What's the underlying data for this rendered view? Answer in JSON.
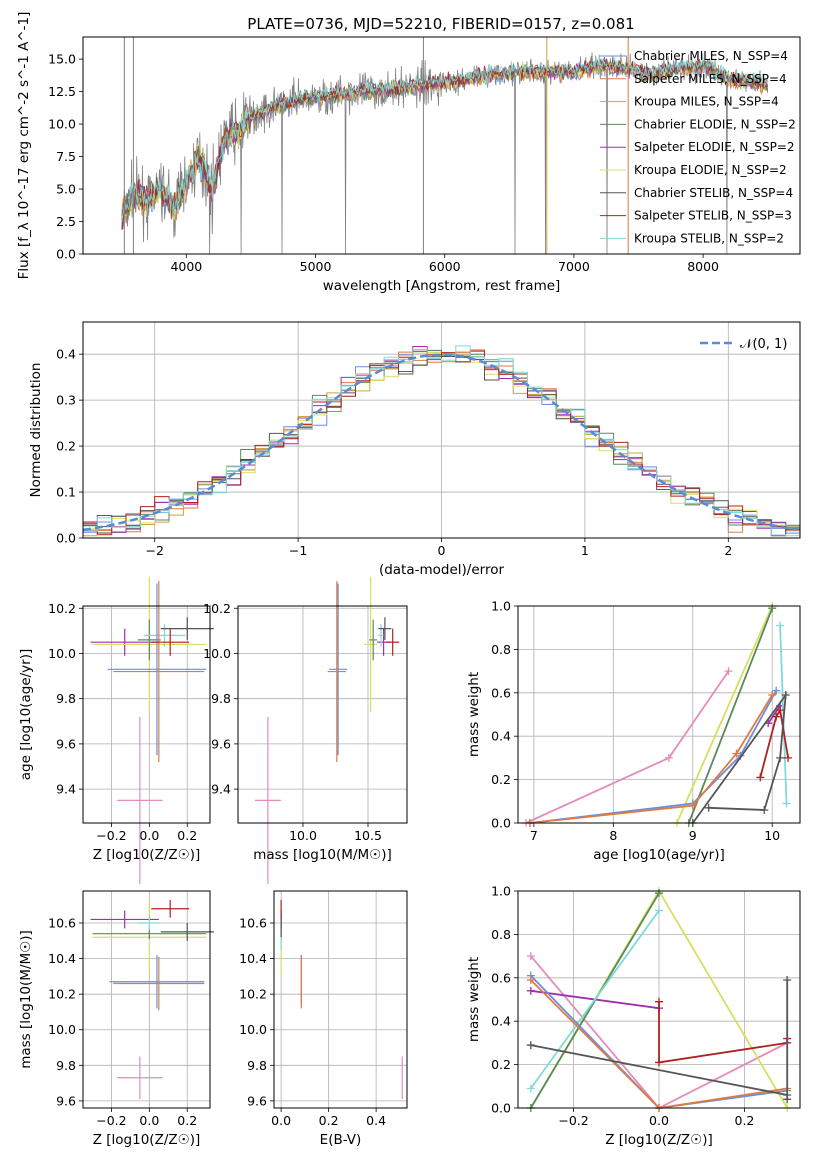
{
  "figure": {
    "title": "PLATE=0736, MJD=52210, FIBERID=0157, z=0.081"
  },
  "chart_data": [
    {
      "id": "spectrum",
      "type": "line",
      "title": "PLATE=0736, MJD=52210, FIBERID=0157, z=0.081",
      "xlabel": "wavelength [Angstrom, rest frame]",
      "ylabel": "Flux [f_λ 10^-17 erg cm^-2 s^-1 A^-1]",
      "xlim": [
        3200,
        8750
      ],
      "ylim": [
        0,
        16.7
      ],
      "xticks": [
        4000,
        5000,
        6000,
        7000,
        8000
      ],
      "yticks": [
        0.0,
        2.5,
        5.0,
        7.5,
        10.0,
        12.5,
        15.0
      ],
      "grid": false,
      "legend_position": "right",
      "data_envelope": {
        "x": [
          3500,
          3600,
          3700,
          3800,
          3900,
          4000,
          4100,
          4200,
          4300,
          4400,
          4500,
          4600,
          4700,
          4800,
          4900,
          5000,
          5200,
          5400,
          5600,
          5800,
          6000,
          6200,
          6400,
          6600,
          6800,
          7000,
          7200,
          7400,
          7600,
          7800,
          8000,
          8200,
          8400,
          8500
        ],
        "y": [
          3.0,
          4.5,
          4.0,
          5.0,
          3.5,
          5.5,
          7.5,
          5.0,
          9.0,
          9.5,
          10.5,
          11.0,
          11.5,
          11.5,
          12.0,
          12.0,
          12.3,
          12.5,
          12.7,
          13.0,
          13.2,
          13.5,
          13.8,
          14.0,
          14.0,
          14.0,
          14.5,
          14.3,
          13.8,
          14.3,
          14.5,
          13.5,
          13.2,
          13.0
        ]
      },
      "series": [
        {
          "name": "Chabrier MILES, N_SSP=4",
          "color": "#6a8fd8"
        },
        {
          "name": "Salpeter MILES, N_SSP=4",
          "color": "#e07a43"
        },
        {
          "name": "Kroupa MILES, N_SSP=4",
          "color": "#c8a840"
        },
        {
          "name": "Chabrier ELODIE, N_SSP=2",
          "color": "#5b8a5a"
        },
        {
          "name": "Salpeter ELODIE, N_SSP=2",
          "color": "#a030b0"
        },
        {
          "name": "Kroupa ELODIE, N_SSP=2",
          "color": "#d6e060"
        },
        {
          "name": "Chabrier STELIB, N_SSP=4",
          "color": "#555555"
        },
        {
          "name": "Salpeter STELIB, N_SSP=3",
          "color": "#b02020"
        },
        {
          "name": "Kroupa STELIB, N_SSP=2",
          "color": "#7fdada"
        }
      ]
    },
    {
      "id": "residual-histogram",
      "type": "line",
      "xlabel": "(data-model)/error",
      "ylabel": "Normed distribution",
      "xlim": [
        -2.5,
        2.5
      ],
      "ylim": [
        0,
        0.47
      ],
      "xticks": [
        -2,
        -1,
        0,
        1,
        2
      ],
      "yticks": [
        0.0,
        0.1,
        0.2,
        0.3,
        0.4
      ],
      "grid": true,
      "legend_position": "top-right",
      "reference_curve": {
        "name": "N(0,1)",
        "color": "#5b8ad8",
        "mean": 0,
        "sigma": 1
      }
    },
    {
      "id": "age-vs-Z",
      "type": "scatter",
      "xlabel": "Z [log10(Z/Z☉)]",
      "ylabel": "age [log10(age/yr)]",
      "xlim": [
        -0.35,
        0.32
      ],
      "ylim": [
        9.25,
        10.21
      ],
      "xticks": [
        -0.2,
        0.0,
        0.2
      ],
      "yticks": [
        9.4,
        9.6,
        9.8,
        10.0,
        10.2
      ],
      "grid": true,
      "points": [
        {
          "color": "#e68cbc",
          "x": -0.05,
          "xerr": 0.12,
          "y": 9.35,
          "yerr": 0.37
        },
        {
          "color": "#a030b0",
          "x": -0.13,
          "xerr": 0.18,
          "y": 10.05,
          "yerr": 0.06
        },
        {
          "color": "#d6e060",
          "x": 0.0,
          "xerr": 0.3,
          "y": 10.04,
          "yerr": 0.3
        },
        {
          "color": "#5b8a5a",
          "x": 0.0,
          "xerr": 0.06,
          "y": 10.06,
          "yerr": 0.09
        },
        {
          "color": "#7fdada",
          "x": 0.08,
          "xerr": 0.11,
          "y": 10.08,
          "yerr": 0.05
        },
        {
          "color": "#6a8fd8",
          "x": 0.04,
          "xerr": 0.26,
          "y": 9.93,
          "yerr": 0.38
        },
        {
          "color": "#e07a43",
          "x": 0.05,
          "xerr": 0.24,
          "y": 9.92,
          "yerr": 0.4
        },
        {
          "color": "#b02020",
          "x": 0.11,
          "xerr": 0.1,
          "y": 10.05,
          "yerr": 0.06
        },
        {
          "color": "#555555",
          "x": 0.2,
          "xerr": 0.14,
          "y": 10.11,
          "yerr": 0.05
        }
      ]
    },
    {
      "id": "age-vs-mass",
      "type": "scatter",
      "xlabel": "mass [log10(M/M☉)]",
      "ylabel": "",
      "xlim": [
        9.5,
        10.8
      ],
      "ylim": [
        9.25,
        10.21
      ],
      "xticks": [
        10.0,
        10.5
      ],
      "yticks": [
        9.4,
        9.6,
        9.8,
        10.0,
        10.2
      ],
      "grid": true,
      "points": [
        {
          "color": "#e68cbc",
          "x": 9.73,
          "xerr": 0.1,
          "y": 9.35,
          "yerr": 0.37
        },
        {
          "color": "#a030b0",
          "x": 10.62,
          "xerr": 0.05,
          "y": 10.05,
          "yerr": 0.06
        },
        {
          "color": "#d6e060",
          "x": 10.52,
          "xerr": 0.05,
          "y": 10.04,
          "yerr": 0.3
        },
        {
          "color": "#5b8a5a",
          "x": 10.54,
          "xerr": 0.03,
          "y": 10.06,
          "yerr": 0.09
        },
        {
          "color": "#7fdada",
          "x": 10.6,
          "xerr": 0.02,
          "y": 10.08,
          "yerr": 0.05
        },
        {
          "color": "#6a8fd8",
          "x": 10.27,
          "xerr": 0.07,
          "y": 9.93,
          "yerr": 0.38
        },
        {
          "color": "#e07a43",
          "x": 10.26,
          "xerr": 0.07,
          "y": 9.92,
          "yerr": 0.4
        },
        {
          "color": "#b02020",
          "x": 10.69,
          "xerr": 0.05,
          "y": 10.05,
          "yerr": 0.06
        },
        {
          "color": "#555555",
          "x": 10.63,
          "xerr": 0.05,
          "y": 10.11,
          "yerr": 0.05
        }
      ]
    },
    {
      "id": "mass-weight-vs-age",
      "type": "line",
      "xlabel": "age [log10(age/yr)]",
      "ylabel": "mass weight",
      "xlim": [
        6.8,
        10.35
      ],
      "ylim": [
        0.0,
        1.0
      ],
      "xticks": [
        7,
        8,
        9,
        10
      ],
      "yticks": [
        0.0,
        0.2,
        0.4,
        0.6,
        0.8,
        1.0
      ],
      "grid": true,
      "series": [
        {
          "color": "#e68cbc",
          "x": [
            6.9,
            8.7,
            9.45
          ],
          "y": [
            0.0,
            0.3,
            0.7
          ]
        },
        {
          "color": "#a030b0",
          "x": [
            9.95,
            10.1
          ],
          "y": [
            0.46,
            0.54
          ]
        },
        {
          "color": "#d6e060",
          "x": [
            8.8,
            10.0
          ],
          "y": [
            0.0,
            1.0
          ]
        },
        {
          "color": "#5b8a5a",
          "x": [
            8.95,
            10.0
          ],
          "y": [
            0.0,
            0.99
          ]
        },
        {
          "color": "#7fdada",
          "x": [
            10.1,
            10.18
          ],
          "y": [
            0.91,
            0.09
          ]
        },
        {
          "color": "#6a8fd8",
          "x": [
            6.95,
            9.0,
            9.6,
            10.05
          ],
          "y": [
            0.0,
            0.09,
            0.31,
            0.61
          ]
        },
        {
          "color": "#e07a43",
          "x": [
            6.95,
            9.0,
            9.55,
            10.0
          ],
          "y": [
            0.0,
            0.08,
            0.32,
            0.59
          ]
        },
        {
          "color": "#b02020",
          "x": [
            9.85,
            10.05,
            10.1,
            10.2
          ],
          "y": [
            0.21,
            0.49,
            0.52,
            0.3
          ]
        },
        {
          "color": "#555555",
          "x": [
            9.2,
            9.9,
            10.1,
            10.17,
            9.0
          ],
          "y": [
            0.07,
            0.06,
            0.3,
            0.59,
            0.0
          ]
        }
      ]
    },
    {
      "id": "mass-vs-Z",
      "type": "scatter",
      "xlabel": "Z [log10(Z/Z☉)]",
      "ylabel": "mass [log10(M/M☉)]",
      "xlim": [
        -0.35,
        0.32
      ],
      "ylim": [
        9.56,
        10.78
      ],
      "xticks": [
        -0.2,
        0.0,
        0.2
      ],
      "yticks": [
        9.6,
        9.8,
        10.0,
        10.2,
        10.4,
        10.6
      ],
      "grid": true,
      "points": [
        {
          "color": "#e68cbc",
          "x": -0.05,
          "xerr": 0.12,
          "y": 9.73,
          "yerr": 0.12
        },
        {
          "color": "#a030b0",
          "x": -0.13,
          "xerr": 0.18,
          "y": 10.62,
          "yerr": 0.05
        },
        {
          "color": "#d6e060",
          "x": 0.0,
          "xerr": 0.3,
          "y": 10.52,
          "yerr": 0.2
        },
        {
          "color": "#5b8a5a",
          "x": 0.0,
          "xerr": 0.3,
          "y": 10.54,
          "yerr": 0.03
        },
        {
          "color": "#7fdada",
          "x": 0.0,
          "xerr": 0.06,
          "y": 10.6,
          "yerr": 0.04
        },
        {
          "color": "#6a8fd8",
          "x": 0.04,
          "xerr": 0.25,
          "y": 10.27,
          "yerr": 0.15
        },
        {
          "color": "#e07a43",
          "x": 0.05,
          "xerr": 0.24,
          "y": 10.26,
          "yerr": 0.15
        },
        {
          "color": "#b02020",
          "x": 0.11,
          "xerr": 0.1,
          "y": 10.68,
          "yerr": 0.05
        },
        {
          "color": "#555555",
          "x": 0.2,
          "xerr": 0.14,
          "y": 10.55,
          "yerr": 0.05
        }
      ]
    },
    {
      "id": "mass-vs-ebv",
      "type": "scatter",
      "xlabel": "E(B-V)",
      "ylabel": "",
      "xlim": [
        -0.03,
        0.53
      ],
      "ylim": [
        9.56,
        10.78
      ],
      "xticks": [
        0.0,
        0.2,
        0.4
      ],
      "yticks": [
        9.6,
        9.8,
        10.0,
        10.2,
        10.4,
        10.6
      ],
      "grid": true,
      "points": [
        {
          "color": "#e68cbc",
          "x": 0.51,
          "xerr": 0,
          "y": 9.73,
          "yerr": 0.12
        },
        {
          "color": "#d6e060",
          "x": 0.0,
          "xerr": 0,
          "y": 10.45,
          "yerr": 0.13
        },
        {
          "color": "#7fdada",
          "x": 0.0,
          "xerr": 0,
          "y": 10.55,
          "yerr": 0.1
        },
        {
          "color": "#a030b0",
          "x": 0.0,
          "xerr": 0,
          "y": 10.62,
          "yerr": 0.05
        },
        {
          "color": "#555555",
          "x": 0.0,
          "xerr": 0,
          "y": 10.58,
          "yerr": 0.06
        },
        {
          "color": "#b02020",
          "x": 0.0,
          "xerr": 0,
          "y": 10.68,
          "yerr": 0.05
        },
        {
          "color": "#6a8fd8",
          "x": 0.085,
          "xerr": 0,
          "y": 10.28,
          "yerr": 0.14
        },
        {
          "color": "#e07a43",
          "x": 0.085,
          "xerr": 0,
          "y": 10.27,
          "yerr": 0.15
        }
      ]
    },
    {
      "id": "mass-weight-vs-Z",
      "type": "line",
      "xlabel": "Z [log10(Z/Z☉)]",
      "ylabel": "mass weight",
      "xlim": [
        -0.33,
        0.33
      ],
      "ylim": [
        0.0,
        1.0
      ],
      "xticks": [
        -0.2,
        0.0,
        0.2
      ],
      "yticks": [
        0.0,
        0.2,
        0.4,
        0.6,
        0.8,
        1.0
      ],
      "grid": true,
      "series": [
        {
          "color": "#e68cbc",
          "x": [
            -0.3,
            0.0,
            0.3
          ],
          "y": [
            0.7,
            0.0,
            0.3
          ]
        },
        {
          "color": "#a030b0",
          "x": [
            -0.3,
            0.0
          ],
          "y": [
            0.54,
            0.46
          ]
        },
        {
          "color": "#d6e060",
          "x": [
            -0.3,
            0.0,
            0.3
          ],
          "y": [
            0.0,
            1.0,
            0.0
          ]
        },
        {
          "color": "#5b8a5a",
          "x": [
            -0.3,
            0.0
          ],
          "y": [
            0.0,
            0.99
          ]
        },
        {
          "color": "#7fdada",
          "x": [
            -0.3,
            0.0
          ],
          "y": [
            0.09,
            0.91
          ]
        },
        {
          "color": "#6a8fd8",
          "x": [
            -0.3,
            0.0,
            0.3
          ],
          "y": [
            0.61,
            0.0,
            0.08
          ]
        },
        {
          "color": "#e07a43",
          "x": [
            -0.3,
            0.0,
            0.3
          ],
          "y": [
            0.59,
            0.0,
            0.09
          ]
        },
        {
          "color": "#b02020",
          "x": [
            0.0,
            0.0,
            0.3,
            0.3
          ],
          "y": [
            0.49,
            0.21,
            0.3,
            0.32
          ]
        },
        {
          "color": "#555555",
          "x": [
            -0.3,
            0.3,
            0.3,
            0.3
          ],
          "y": [
            0.29,
            0.06,
            0.59,
            0.04
          ]
        }
      ]
    }
  ]
}
